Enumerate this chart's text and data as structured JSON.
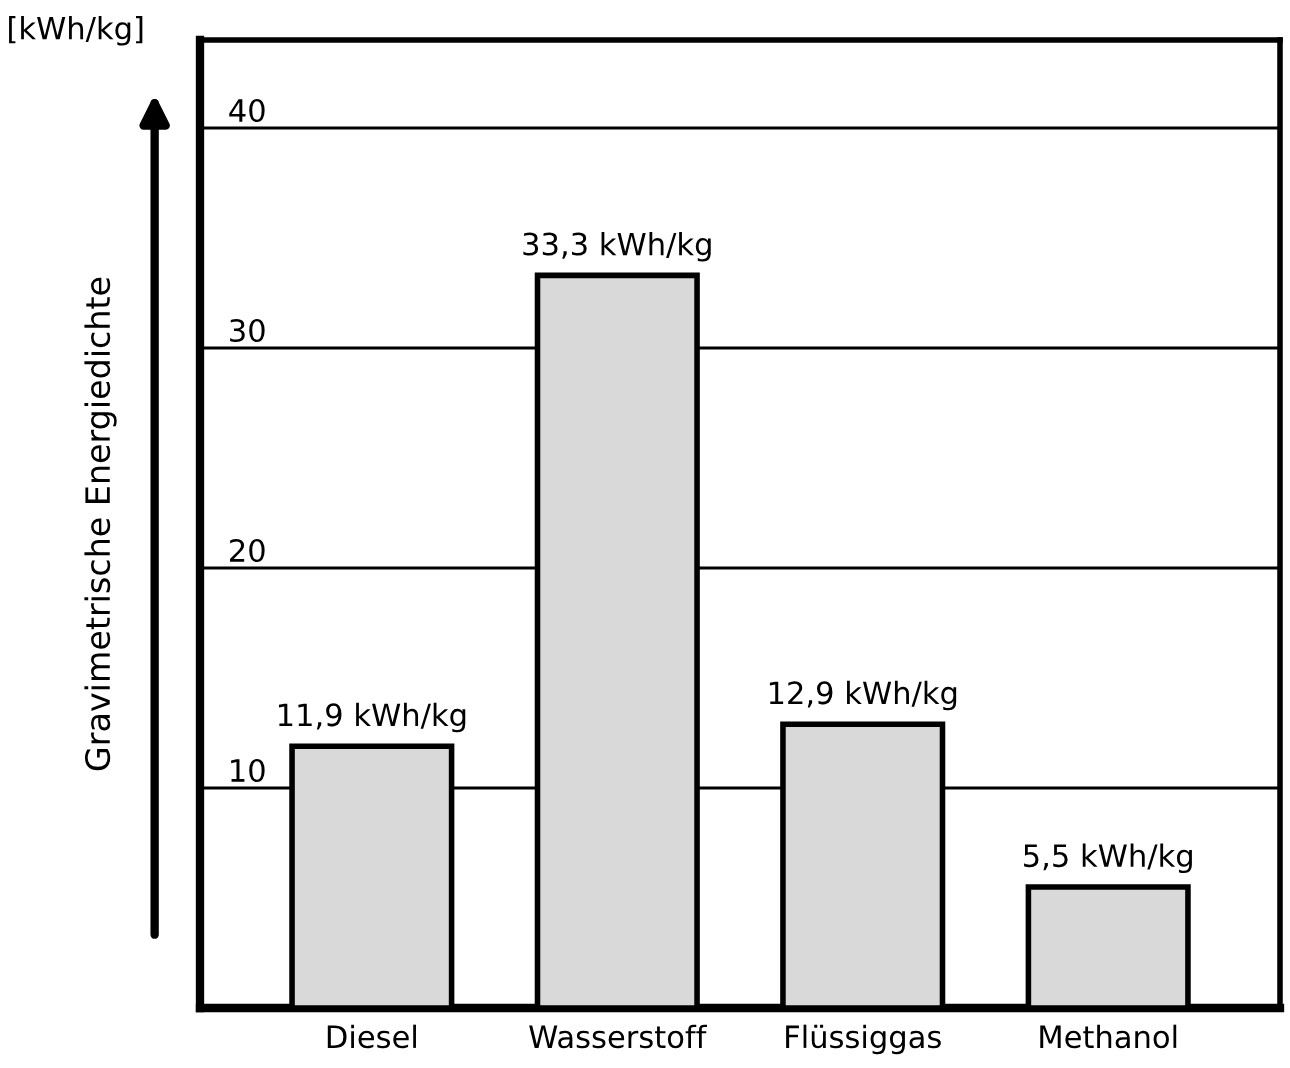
{
  "chart_data": {
    "type": "bar",
    "ylabel": "Gravimetrische Energiedichte",
    "categories": [
      "Diesel",
      "Wasserstoff",
      "Flüssiggas",
      "Methanol"
    ],
    "values": [
      11.9,
      33.3,
      12.9,
      5.5
    ],
    "value_labels": [
      "11,9 kWh/kg",
      "33,3 kWh/kg",
      "12,9 kWh/kg",
      "5,5 kWh/kg"
    ],
    "color": "#d9d9d9",
    "ylim": [
      0,
      44
    ],
    "yticks": [
      {
        "value": 0,
        "label": null
      },
      10,
      20,
      30,
      40
    ],
    "grid": "y",
    "annotations": [
      "[kWh/kg]"
    ]
  }
}
